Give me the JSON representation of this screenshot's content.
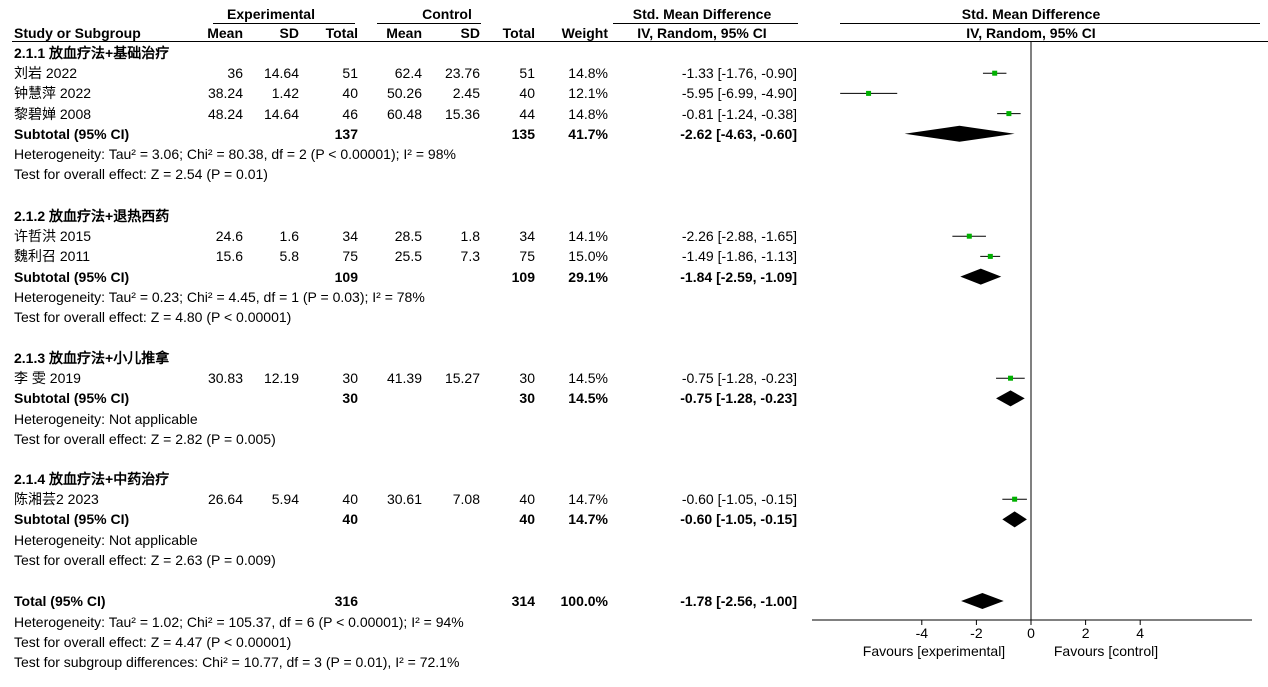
{
  "header": {
    "experimental": "Experimental",
    "control": "Control",
    "smd_left": "Std. Mean Difference",
    "smd_right": "Std. Mean Difference",
    "study": "Study or Subgroup",
    "mean": "Mean",
    "sd": "SD",
    "total": "Total",
    "weight": "Weight",
    "method_left": "IV, Random, 95% CI",
    "method_right": "IV, Random, 95% CI"
  },
  "groups": [
    {
      "title": "2.1.1 放血疗法+基础治疗",
      "studies": [
        {
          "name": "刘岩 2022",
          "e_mean": "36",
          "e_sd": "14.64",
          "e_total": "51",
          "c_mean": "62.4",
          "c_sd": "23.76",
          "c_total": "51",
          "weight": "14.8%",
          "ci": "-1.33 [-1.76, -0.90]"
        },
        {
          "name": "钟慧萍 2022",
          "e_mean": "38.24",
          "e_sd": "1.42",
          "e_total": "40",
          "c_mean": "50.26",
          "c_sd": "2.45",
          "c_total": "40",
          "weight": "12.1%",
          "ci": "-5.95 [-6.99, -4.90]"
        },
        {
          "name": "黎碧婵 2008",
          "e_mean": "48.24",
          "e_sd": "14.64",
          "e_total": "46",
          "c_mean": "60.48",
          "c_sd": "15.36",
          "c_total": "44",
          "weight": "14.8%",
          "ci": "-0.81 [-1.24, -0.38]"
        }
      ],
      "subtotal": {
        "label": "Subtotal (95% CI)",
        "e_total": "137",
        "c_total": "135",
        "weight": "41.7%",
        "ci": "-2.62 [-4.63, -0.60]"
      },
      "heterogeneity": "Heterogeneity: Tau² = 3.06; Chi² = 80.38, df = 2 (P < 0.00001); I² = 98%",
      "overall": "Test for overall effect: Z = 2.54 (P = 0.01)"
    },
    {
      "title": "2.1.2 放血疗法+退热西药",
      "studies": [
        {
          "name": "许哲洪 2015",
          "e_mean": "24.6",
          "e_sd": "1.6",
          "e_total": "34",
          "c_mean": "28.5",
          "c_sd": "1.8",
          "c_total": "34",
          "weight": "14.1%",
          "ci": "-2.26 [-2.88, -1.65]"
        },
        {
          "name": "魏利召 2011",
          "e_mean": "15.6",
          "e_sd": "5.8",
          "e_total": "75",
          "c_mean": "25.5",
          "c_sd": "7.3",
          "c_total": "75",
          "weight": "15.0%",
          "ci": "-1.49 [-1.86, -1.13]"
        }
      ],
      "subtotal": {
        "label": "Subtotal (95% CI)",
        "e_total": "109",
        "c_total": "109",
        "weight": "29.1%",
        "ci": "-1.84 [-2.59, -1.09]"
      },
      "heterogeneity": "Heterogeneity: Tau² = 0.23; Chi² = 4.45, df = 1 (P = 0.03); I² = 78%",
      "overall": "Test for overall effect: Z = 4.80 (P < 0.00001)"
    },
    {
      "title": "2.1.3 放血疗法+小儿推拿",
      "studies": [
        {
          "name": "李 雯 2019",
          "e_mean": "30.83",
          "e_sd": "12.19",
          "e_total": "30",
          "c_mean": "41.39",
          "c_sd": "15.27",
          "c_total": "30",
          "weight": "14.5%",
          "ci": "-0.75 [-1.28, -0.23]"
        }
      ],
      "subtotal": {
        "label": "Subtotal (95% CI)",
        "e_total": "30",
        "c_total": "30",
        "weight": "14.5%",
        "ci": "-0.75 [-1.28, -0.23]"
      },
      "heterogeneity": "Heterogeneity: Not applicable",
      "overall": "Test for overall effect: Z = 2.82 (P = 0.005)"
    },
    {
      "title": "2.1.4 放血疗法+中药治疗",
      "studies": [
        {
          "name": "陈湘芸2 2023",
          "e_mean": "26.64",
          "e_sd": "5.94",
          "e_total": "40",
          "c_mean": "30.61",
          "c_sd": "7.08",
          "c_total": "40",
          "weight": "14.7%",
          "ci": "-0.60 [-1.05, -0.15]"
        }
      ],
      "subtotal": {
        "label": "Subtotal (95% CI)",
        "e_total": "40",
        "c_total": "40",
        "weight": "14.7%",
        "ci": "-0.60 [-1.05, -0.15]"
      },
      "heterogeneity": "Heterogeneity: Not applicable",
      "overall": "Test for overall effect: Z = 2.63 (P = 0.009)"
    }
  ],
  "total": {
    "label": "Total (95% CI)",
    "e_total": "316",
    "c_total": "314",
    "weight": "100.0%",
    "ci": "-1.78 [-2.56, -1.00]",
    "heterogeneity": "Heterogeneity: Tau² = 1.02; Chi² = 105.37, df = 6 (P < 0.00001); I² = 94%",
    "overall": "Test for overall effect: Z = 4.47 (P < 0.00001)",
    "subgroup": "Test for subgroup differences: Chi² = 10.77, df = 3 (P = 0.01), I² = 72.1%"
  },
  "axis": {
    "favours_left": "Favours [experimental]",
    "favours_right": "Favours [control]"
  },
  "chart_data": {
    "type": "forest",
    "xlim": [
      -8,
      4
    ],
    "ticks": [
      -4,
      -2,
      0,
      2,
      4
    ],
    "null_line": 0,
    "marker_color": "#00b000",
    "studies": [
      {
        "name": "刘岩 2022",
        "est": -1.33,
        "lo": -1.76,
        "hi": -0.9
      },
      {
        "name": "钟慧萍 2022",
        "est": -5.95,
        "lo": -6.99,
        "hi": -4.9
      },
      {
        "name": "黎碧婵 2008",
        "est": -0.81,
        "lo": -1.24,
        "hi": -0.38
      },
      {
        "name": "许哲洪 2015",
        "est": -2.26,
        "lo": -2.88,
        "hi": -1.65
      },
      {
        "name": "魏利召 2011",
        "est": -1.49,
        "lo": -1.86,
        "hi": -1.13
      },
      {
        "name": "李 雯 2019",
        "est": -0.75,
        "lo": -1.28,
        "hi": -0.23
      },
      {
        "name": "陈湘芸2 2023",
        "est": -0.6,
        "lo": -1.05,
        "hi": -0.15
      }
    ],
    "diamonds": [
      {
        "name": "2.1.1 Subtotal",
        "est": -2.62,
        "lo": -4.63,
        "hi": -0.6
      },
      {
        "name": "2.1.2 Subtotal",
        "est": -1.84,
        "lo": -2.59,
        "hi": -1.09
      },
      {
        "name": "2.1.3 Subtotal",
        "est": -0.75,
        "lo": -1.28,
        "hi": -0.23
      },
      {
        "name": "2.1.4 Subtotal",
        "est": -0.6,
        "lo": -1.05,
        "hi": -0.15
      },
      {
        "name": "Total",
        "est": -1.78,
        "lo": -2.56,
        "hi": -1.0
      }
    ]
  }
}
